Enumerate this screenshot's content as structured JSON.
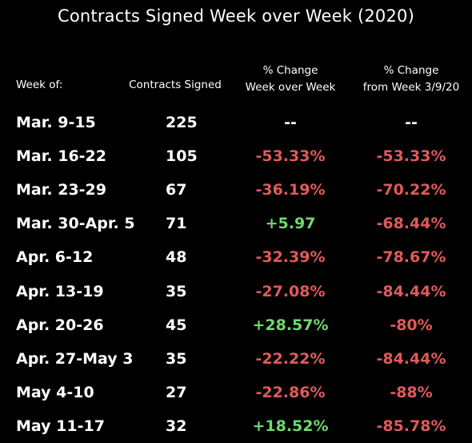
{
  "title": "Contracts Signed Week over Week (2020)",
  "colors": {
    "background": "#000000",
    "text": "#ffffff",
    "negative": "#e05a5a",
    "positive": "#6fd86f"
  },
  "chart_data": {
    "type": "table",
    "title": "Contracts Signed Week over Week (2020)",
    "columns": {
      "week": "Week of:",
      "contracts": "Contracts Signed",
      "pct_wow_line1": "% Change",
      "pct_wow_line2": "Week over Week",
      "pct_base_line1": "% Change",
      "pct_base_line2": "from Week 3/9/20"
    },
    "rows": [
      {
        "week": "Mar. 9-15",
        "contracts": "225",
        "pct_wow": "--",
        "pct_base": "--",
        "wow_sign": "neu",
        "base_sign": "neu"
      },
      {
        "week": "Mar. 16-22",
        "contracts": "105",
        "pct_wow": "-53.33%",
        "pct_base": "-53.33%",
        "wow_sign": "neg",
        "base_sign": "neg"
      },
      {
        "week": "Mar. 23-29",
        "contracts": "67",
        "pct_wow": "-36.19%",
        "pct_base": "-70.22%",
        "wow_sign": "neg",
        "base_sign": "neg"
      },
      {
        "week": "Mar. 30-Apr. 5",
        "contracts": "71",
        "pct_wow": "+5.97",
        "pct_base": "-68.44%",
        "wow_sign": "pos",
        "base_sign": "neg"
      },
      {
        "week": "Apr. 6-12",
        "contracts": "48",
        "pct_wow": "-32.39%",
        "pct_base": "-78.67%",
        "wow_sign": "neg",
        "base_sign": "neg"
      },
      {
        "week": "Apr. 13-19",
        "contracts": "35",
        "pct_wow": "-27.08%",
        "pct_base": "-84.44%",
        "wow_sign": "neg",
        "base_sign": "neg"
      },
      {
        "week": "Apr. 20-26",
        "contracts": "45",
        "pct_wow": "+28.57%",
        "pct_base": "-80%",
        "wow_sign": "pos",
        "base_sign": "neg"
      },
      {
        "week": "Apr. 27-May 3",
        "contracts": "35",
        "pct_wow": "-22.22%",
        "pct_base": "-84.44%",
        "wow_sign": "neg",
        "base_sign": "neg"
      },
      {
        "week": "May 4-10",
        "contracts": "27",
        "pct_wow": "-22.86%",
        "pct_base": "-88%",
        "wow_sign": "neg",
        "base_sign": "neg"
      },
      {
        "week": "May 11-17",
        "contracts": "32",
        "pct_wow": "+18.52%",
        "pct_base": "-85.78%",
        "wow_sign": "pos",
        "base_sign": "neg"
      }
    ]
  }
}
